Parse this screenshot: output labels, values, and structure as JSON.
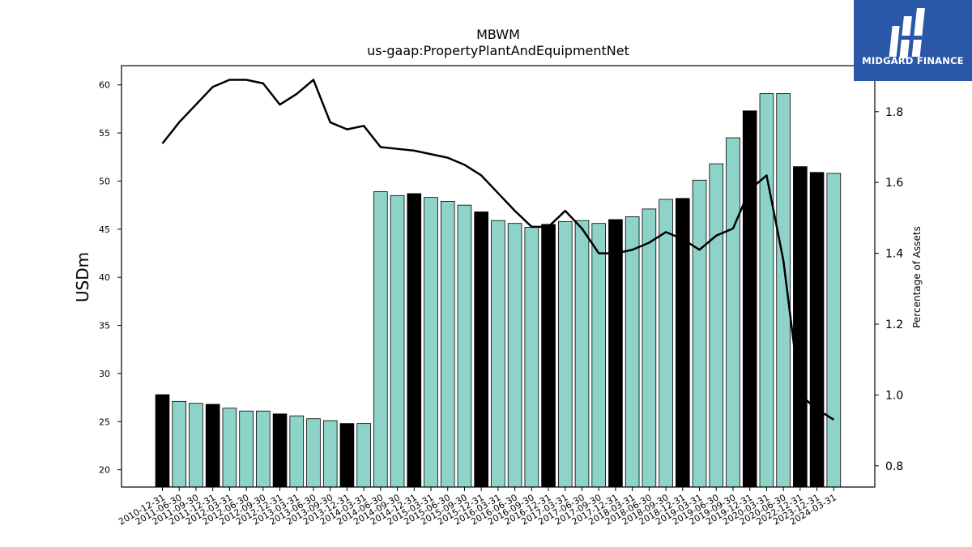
{
  "logo": {
    "text": "MIDGARD FINANCE",
    "bg_color": "#2b57a8"
  },
  "chart_data": {
    "type": "bar",
    "title": "MBWM",
    "subtitle": "us-gaap:PropertyPlantAndEquipmentNet",
    "ylabel": "USDm",
    "y2label": "Percentage of Assets",
    "ylim": [
      18.2,
      62.0
    ],
    "y2lim": [
      0.74,
      1.93
    ],
    "yticks": [
      20,
      25,
      30,
      35,
      40,
      45,
      50,
      55,
      60
    ],
    "y2ticks": [
      0.8,
      1.0,
      1.2,
      1.4,
      1.6,
      1.8
    ],
    "bar_color": "#8dd3c7",
    "highlight_color": "#000000",
    "line_color": "#000000",
    "categories": [
      "2010-12-31",
      "2011-06-30",
      "2011-09-30",
      "2011-12-31",
      "2012-03-31",
      "2012-06-30",
      "2012-09-30",
      "2012-12-31",
      "2013-03-31",
      "2013-06-30",
      "2013-09-30",
      "2013-12-31",
      "2014-03-31",
      "2014-06-30",
      "2014-09-30",
      "2014-12-31",
      "2015-03-31",
      "2015-06-30",
      "2015-09-30",
      "2015-12-31",
      "2016-03-31",
      "2016-06-30",
      "2016-09-30",
      "2016-12-31",
      "2017-03-31",
      "2017-06-30",
      "2017-09-30",
      "2017-12-31",
      "2018-03-31",
      "2018-06-30",
      "2018-09-30",
      "2018-12-31",
      "2019-03-31",
      "2019-06-30",
      "2019-09-30",
      "2019-12-31",
      "2020-03-31",
      "2020-06-30",
      "2022-12-31",
      "2023-12-31",
      "2024-03-31"
    ],
    "series": [
      {
        "type": "bar",
        "values": [
          27.8,
          27.1,
          26.9,
          26.8,
          26.4,
          26.1,
          26.1,
          25.8,
          25.6,
          25.3,
          25.1,
          24.8,
          24.8,
          48.9,
          48.5,
          48.7,
          48.3,
          47.9,
          47.5,
          46.8,
          45.9,
          45.6,
          45.2,
          45.5,
          45.8,
          45.9,
          45.6,
          46.0,
          46.3,
          47.1,
          48.1,
          48.2,
          50.1,
          51.8,
          54.5,
          57.3,
          59.1,
          59.1,
          51.5,
          50.9,
          50.8
        ],
        "highlight": [
          true,
          false,
          false,
          true,
          false,
          false,
          false,
          true,
          false,
          false,
          false,
          true,
          false,
          false,
          false,
          true,
          false,
          false,
          false,
          true,
          false,
          false,
          false,
          true,
          false,
          false,
          false,
          true,
          false,
          false,
          false,
          true,
          false,
          false,
          false,
          true,
          false,
          false,
          true,
          true,
          false
        ]
      },
      {
        "type": "line",
        "axis": "right",
        "values": [
          1.71,
          1.77,
          1.82,
          1.87,
          1.89,
          1.89,
          1.88,
          1.82,
          1.85,
          1.89,
          1.77,
          1.75,
          1.76,
          1.7,
          1.695,
          1.69,
          1.68,
          1.67,
          1.65,
          1.62,
          1.57,
          1.52,
          1.475,
          1.475,
          1.52,
          1.47,
          1.4,
          1.4,
          1.41,
          1.43,
          1.46,
          1.44,
          1.41,
          1.45,
          1.47,
          1.58,
          1.62,
          1.38,
          1.0,
          0.96,
          0.93
        ]
      }
    ]
  }
}
